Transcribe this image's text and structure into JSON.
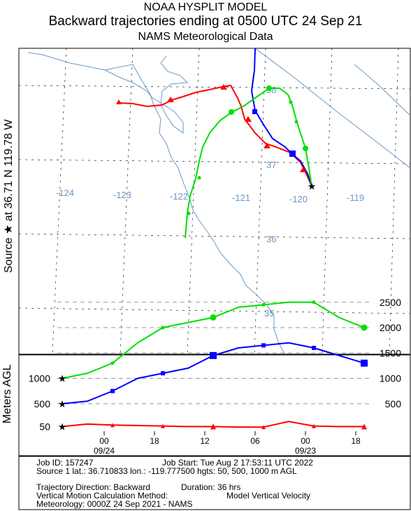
{
  "header": {
    "title": "NOAA HYSPLIT MODEL",
    "subtitle": "Backward trajectories ending at 0500 UTC 24 Sep 21",
    "meteorology": "NAMS Meteorological Data"
  },
  "source_label": "Source ★ at   36.71 N  119.78 W",
  "map": {
    "lon_labels": [
      "-124",
      "-123",
      "-122",
      "-121",
      "-120",
      "-119"
    ],
    "lat_labels": [
      "37",
      "36",
      "35"
    ],
    "lat_label_38": "38",
    "label_color": "#6a98c8"
  },
  "chart_data": {
    "type": "line",
    "title": "Backward trajectories ending at 0500 UTC 24 Sep 21",
    "ylabel": "Meters AGL",
    "x_tick_labels": [
      "00",
      "18",
      "12",
      "06",
      "00",
      "18"
    ],
    "x_date_labels": [
      "09/24",
      "09/23"
    ],
    "y_ticks_right": [
      "2500",
      "2000",
      "1500",
      "1000",
      "500"
    ],
    "y_ticks_left": [
      "1000",
      "500",
      "50"
    ],
    "ylim": [
      0,
      2700
    ],
    "x_hours_back": [
      0,
      3,
      6,
      9,
      12,
      15,
      18,
      21,
      24,
      27,
      30,
      33,
      36
    ],
    "series": [
      {
        "start_height": "50",
        "color": "#ff0000",
        "heights": [
          50,
          100,
          80,
          70,
          60,
          50,
          50,
          40,
          40,
          150,
          60,
          50,
          50
        ]
      },
      {
        "start_height": "500",
        "color": "#0000ff",
        "heights": [
          500,
          550,
          750,
          1000,
          1100,
          1200,
          1450,
          1600,
          1650,
          1700,
          1600,
          1450,
          1300
        ]
      },
      {
        "start_height": "1000",
        "color": "#00e000",
        "heights": [
          1000,
          1100,
          1300,
          1700,
          2000,
          2100,
          2200,
          2400,
          2450,
          2500,
          2500,
          2200,
          2000
        ]
      }
    ]
  },
  "footer": {
    "job_id": "Job ID: 157247",
    "job_start": "Job Start: Tue Aug  2 17:53:11 UTC 2022",
    "source_line": "Source 1 lat.: 36.710833  lon.: -119.777500  hgts: 50, 500, 1000 m AGL",
    "direction": "Trajectory Direction: Backward",
    "duration": "Duration: 36 hrs",
    "vertical_method": "Vertical Motion Calculation Method:",
    "vertical_value": "Model Vertical Velocity",
    "meteo": "Meteorology: 0000Z 24 Sep 2021 - NAMS"
  }
}
